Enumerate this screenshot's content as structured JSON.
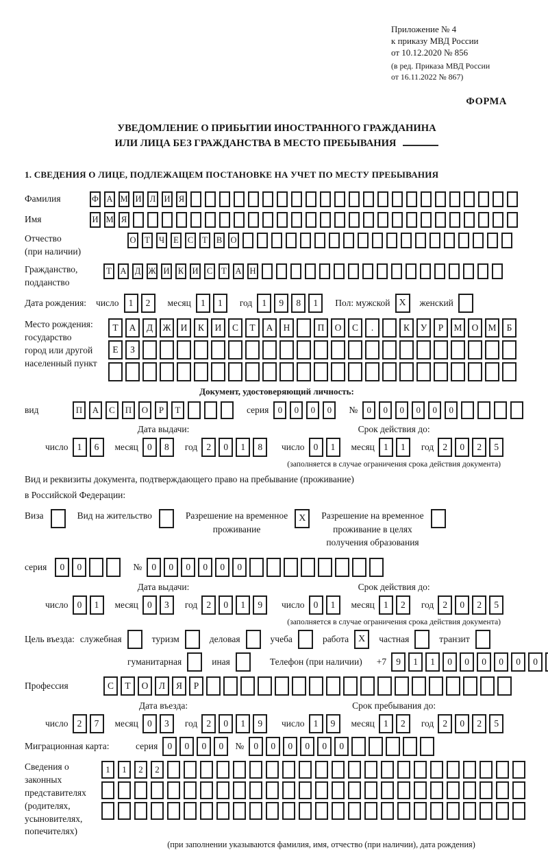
{
  "marks": {
    "checked": "X"
  },
  "header": {
    "line1": "Приложение № 4",
    "line2": "к приказу МВД России",
    "line3": "от 10.12.2020 № 856",
    "sub1": "(в ред. Приказа МВД России",
    "sub2": "от 16.11.2022 № 867)",
    "form_label": "ФОРМА"
  },
  "title": {
    "line1": "УВЕДОМЛЕНИЕ О ПРИБЫТИИ ИНОСТРАННОГО ГРАЖДАНИНА",
    "line2": "ИЛИ ЛИЦА БЕЗ ГРАЖДАНСТВА В МЕСТО ПРЕБЫВАНИЯ"
  },
  "section1_heading": "1. СВЕДЕНИЯ О ЛИЦЕ, ПОДЛЕЖАЩЕМ ПОСТАНОВКЕ НА УЧЕТ ПО МЕСТУ ПРЕБЫВАНИЯ",
  "labels": {
    "day": "число",
    "month": "месяц",
    "year": "год",
    "series": "серия",
    "number_sign": "№",
    "phone_prefix": "+7"
  },
  "surname": {
    "label": "Фамилия",
    "cells": [
      "Ф",
      "А",
      "М",
      "И",
      "Л",
      "И",
      "Я",
      "",
      "",
      "",
      "",
      "",
      "",
      "",
      "",
      "",
      "",
      "",
      "",
      "",
      "",
      "",
      "",
      "",
      "",
      "",
      "",
      "",
      "",
      ""
    ]
  },
  "given_name": {
    "label": "Имя",
    "cells": [
      "И",
      "М",
      "Я",
      "",
      "",
      "",
      "",
      "",
      "",
      "",
      "",
      "",
      "",
      "",
      "",
      "",
      "",
      "",
      "",
      "",
      "",
      "",
      "",
      "",
      "",
      "",
      "",
      "",
      "",
      ""
    ]
  },
  "patronymic": {
    "label": "Отчество\n(при наличии)",
    "cells": [
      "О",
      "Т",
      "Ч",
      "Е",
      "С",
      "Т",
      "В",
      "О",
      "",
      "",
      "",
      "",
      "",
      "",
      "",
      "",
      "",
      "",
      "",
      "",
      "",
      "",
      "",
      "",
      "",
      "",
      ""
    ]
  },
  "citizenship": {
    "label": "Гражданство,\nподданство",
    "cells": [
      "Т",
      "А",
      "Д",
      "Ж",
      "И",
      "К",
      "И",
      "С",
      "Т",
      "А",
      "Н",
      "",
      "",
      "",
      "",
      "",
      "",
      "",
      "",
      "",
      "",
      "",
      "",
      "",
      "",
      "",
      "",
      ""
    ]
  },
  "birth": {
    "label": "Дата рождения:",
    "day": [
      "1",
      "2"
    ],
    "month": [
      "1",
      "1"
    ],
    "year": [
      "1",
      "9",
      "8",
      "1"
    ],
    "gender_label": "Пол: мужской",
    "male_checked": true,
    "female_label": "женский",
    "female_checked": false
  },
  "birth_place": {
    "label": "Место рождения:\nгосударство\nгород или другой\nнаселенный пункт",
    "row1": [
      "Т",
      "А",
      "Д",
      "Ж",
      "И",
      "К",
      "И",
      "С",
      "Т",
      "А",
      "Н",
      "",
      "П",
      "О",
      "С",
      ".",
      "",
      "К",
      "У",
      "Р",
      "М",
      "О",
      "М",
      "Б"
    ],
    "row2": [
      "Е",
      "З",
      "",
      "",
      "",
      "",
      "",
      "",
      "",
      "",
      "",
      "",
      "",
      "",
      "",
      "",
      "",
      "",
      "",
      "",
      "",
      "",
      "",
      ""
    ],
    "row3": [
      "",
      "",
      "",
      "",
      "",
      "",
      "",
      "",
      "",
      "",
      "",
      "",
      "",
      "",
      "",
      "",
      "",
      "",
      "",
      "",
      "",
      "",
      "",
      ""
    ]
  },
  "identity_doc": {
    "heading": "Документ, удостоверяющий личность:",
    "kind_label": "вид",
    "kind": [
      "П",
      "А",
      "С",
      "П",
      "О",
      "Р",
      "Т",
      "",
      "",
      ""
    ],
    "series": [
      "0",
      "0",
      "0",
      "0"
    ],
    "number": [
      "0",
      "0",
      "0",
      "0",
      "0",
      "0",
      "",
      "",
      "",
      ""
    ],
    "issue_title": "Дата выдачи:",
    "issue_day": [
      "1",
      "6"
    ],
    "issue_month": [
      "0",
      "8"
    ],
    "issue_year": [
      "2",
      "0",
      "1",
      "8"
    ],
    "valid_title": "Срок действия до:",
    "valid_day": [
      "0",
      "1"
    ],
    "valid_month": [
      "1",
      "1"
    ],
    "valid_year": [
      "2",
      "0",
      "2",
      "5"
    ],
    "valid_note": "(заполняется в случае ограничения срока действия документа)"
  },
  "residence_doc": {
    "heading1": "Вид и реквизиты документа, подтверждающего право на пребывание (проживание)",
    "heading2": "в Российской Федерации:",
    "options": [
      {
        "label": "Виза",
        "checked": false
      },
      {
        "label": "Вид на жительство",
        "checked": false
      },
      {
        "label": "Разрешение на временное\nпроживание",
        "checked": true
      },
      {
        "label": "Разрешение на временное\nпроживание в целях\nполучения образования",
        "checked": false
      }
    ],
    "series": [
      "0",
      "0",
      "",
      ""
    ],
    "number": [
      "0",
      "0",
      "0",
      "0",
      "0",
      "0",
      "",
      "",
      "",
      "",
      "",
      "",
      "",
      ""
    ],
    "issue_title": "Дата выдачи:",
    "issue_day": [
      "0",
      "1"
    ],
    "issue_month": [
      "0",
      "3"
    ],
    "issue_year": [
      "2",
      "0",
      "1",
      "9"
    ],
    "valid_title": "Срок действия до:",
    "valid_day": [
      "0",
      "1"
    ],
    "valid_month": [
      "1",
      "2"
    ],
    "valid_year": [
      "2",
      "0",
      "2",
      "5"
    ],
    "valid_note": "(заполняется в случае ограничения срока действия документа)"
  },
  "purpose": {
    "label": "Цель въезда:",
    "options_line1": [
      {
        "label": "служебная",
        "checked": false
      },
      {
        "label": "туризм",
        "checked": false
      },
      {
        "label": "деловая",
        "checked": false
      },
      {
        "label": "учеба",
        "checked": false
      },
      {
        "label": "работа",
        "checked": true
      },
      {
        "label": "частная",
        "checked": false
      },
      {
        "label": "транзит",
        "checked": false
      }
    ],
    "options_line2": [
      {
        "label": "гуманитарная",
        "checked": false
      },
      {
        "label": "иная",
        "checked": false
      }
    ],
    "phone_label": "Телефон (при наличии)",
    "phone": [
      "9",
      "1",
      "1",
      "0",
      "0",
      "0",
      "0",
      "0",
      "0",
      ""
    ]
  },
  "profession": {
    "label": "Профессия",
    "cells": [
      "С",
      "Т",
      "О",
      "Л",
      "Я",
      "Р",
      "",
      "",
      "",
      "",
      "",
      "",
      "",
      "",
      "",
      "",
      "",
      "",
      "",
      "",
      "",
      "",
      "",
      ""
    ]
  },
  "entry": {
    "date_title": "Дата въезда:",
    "date_day": [
      "2",
      "7"
    ],
    "date_month": [
      "0",
      "3"
    ],
    "date_year": [
      "2",
      "0",
      "1",
      "9"
    ],
    "stay_title": "Срок пребывания до:",
    "stay_day": [
      "1",
      "9"
    ],
    "stay_month": [
      "1",
      "2"
    ],
    "stay_year": [
      "2",
      "0",
      "2",
      "5"
    ]
  },
  "migration_card": {
    "label": "Миграционная карта:",
    "series": [
      "0",
      "0",
      "0",
      "0"
    ],
    "number": [
      "0",
      "0",
      "0",
      "0",
      "0",
      "0",
      "",
      "",
      "",
      "",
      ""
    ]
  },
  "legal_reps": {
    "label": "Сведения о\nзаконных\nпредставителях\n(родителях,\nусыновителях,\nпопечителях)",
    "row1": [
      "1",
      "1",
      "2",
      "2",
      "",
      "",
      "",
      "",
      "",
      "",
      "",
      "",
      "",
      "",
      "",
      "",
      "",
      "",
      "",
      "",
      "",
      "",
      "",
      "",
      "",
      ""
    ],
    "row2": [
      "",
      "",
      "",
      "",
      "",
      "",
      "",
      "",
      "",
      "",
      "",
      "",
      "",
      "",
      "",
      "",
      "",
      "",
      "",
      "",
      "",
      "",
      "",
      "",
      "",
      ""
    ],
    "row3": [
      "",
      "",
      "",
      "",
      "",
      "",
      "",
      "",
      "",
      "",
      "",
      "",
      "",
      "",
      "",
      "",
      "",
      "",
      "",
      "",
      "",
      "",
      "",
      "",
      "",
      ""
    ],
    "note": "(при заполнении указываются фамилия, имя, отчество (при наличии), дата рождения)"
  }
}
